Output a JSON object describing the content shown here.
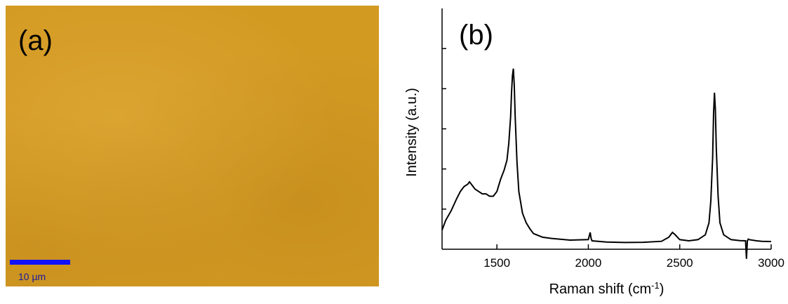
{
  "panel_a": {
    "label": "(a)",
    "scale_bar_label": "10 µm",
    "background_color": "#d39a22",
    "scale_bar_color": "#1010ff"
  },
  "panel_b": {
    "label": "(b)"
  },
  "chart_data": {
    "type": "line",
    "title": "",
    "xlabel": "Raman shift (cm-1)",
    "ylabel": "Intensity (a.u.)",
    "xlim": [
      1200,
      3000
    ],
    "ylim": [
      0,
      100
    ],
    "xticks": [
      1500,
      2000,
      2500,
      3000
    ],
    "xtick_labels": [
      "1500",
      "2000",
      "2500",
      "3000"
    ],
    "yticks_count": 5,
    "grid": false,
    "legend": false,
    "series": [
      {
        "color": "#000000",
        "x": [
          1200,
          1220,
          1250,
          1280,
          1300,
          1320,
          1340,
          1350,
          1360,
          1380,
          1400,
          1420,
          1440,
          1460,
          1480,
          1500,
          1520,
          1540,
          1555,
          1565,
          1575,
          1580,
          1585,
          1590,
          1595,
          1600,
          1610,
          1620,
          1640,
          1660,
          1680,
          1700,
          1750,
          1800,
          1900,
          2000,
          2010,
          2015,
          2020,
          2100,
          2200,
          2300,
          2400,
          2440,
          2460,
          2475,
          2500,
          2550,
          2600,
          2640,
          2660,
          2670,
          2680,
          2685,
          2690,
          2695,
          2700,
          2710,
          2720,
          2740,
          2780,
          2830,
          2860,
          2865,
          2870,
          2875,
          2880,
          2920,
          2950,
          3000
        ],
        "y": [
          8,
          12,
          16,
          21,
          24,
          26,
          27,
          28,
          27,
          25,
          24,
          23,
          23,
          22,
          22,
          24,
          29,
          33,
          37,
          44,
          55,
          65,
          72,
          75,
          68,
          55,
          36,
          24,
          15,
          11,
          8.5,
          6.5,
          5,
          4.5,
          3.8,
          4,
          7,
          4.5,
          3.5,
          3,
          2.8,
          2.9,
          3.3,
          5,
          7,
          6,
          4,
          3.5,
          4,
          6,
          11,
          20,
          38,
          56,
          65,
          58,
          42,
          22,
          11,
          6,
          4,
          3.6,
          3.5,
          -4,
          3.5,
          4.2,
          4,
          3.5,
          3.3,
          3.2
        ]
      }
    ]
  }
}
